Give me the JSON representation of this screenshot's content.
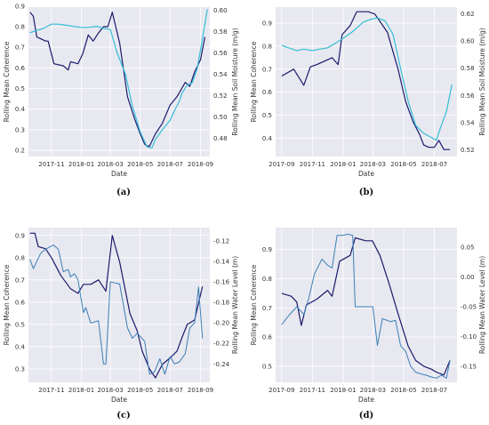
{
  "colors": {
    "coherence": "#1a1a6e",
    "soil": "#33bfd6",
    "water": "#3a7fb5"
  },
  "chart_data": [
    {
      "type": "line",
      "caption": "(a)",
      "xlabel": "Date",
      "ylabel": "Rolling Mean Coherence",
      "ylabel_right": "Rolling Mean Soil Moisture (m/g)",
      "xlim": [
        "2017-09-15",
        "2018-09-20"
      ],
      "ylim": [
        0.17,
        0.895
      ],
      "ylim_right": [
        0.463,
        0.603
      ],
      "x_ticks": [
        "2017-11",
        "2018-01",
        "2018-03",
        "2018-05",
        "2018-07",
        "2018-09"
      ],
      "x_tick_dates": [
        "2017-11-01",
        "2018-01-01",
        "2018-03-01",
        "2018-05-01",
        "2018-07-01",
        "2018-09-01"
      ],
      "y_ticks": [
        "0.2",
        "0.3",
        "0.4",
        "0.5",
        "0.6",
        "0.7",
        "0.8",
        "0.9"
      ],
      "y_tick_values": [
        0.2,
        0.3,
        0.4,
        0.5,
        0.6,
        0.7,
        0.8,
        0.9
      ],
      "y_ticks_right": [
        "0.48",
        "0.50",
        "0.52",
        "0.54",
        "0.56",
        "0.58",
        "0.60"
      ],
      "y_tick_values_right": [
        0.48,
        0.5,
        0.52,
        0.54,
        0.56,
        0.58,
        0.6
      ],
      "series": [
        {
          "axis": "left",
          "color_key": "coherence",
          "width": 1.2,
          "x": [
            "2017-09-18",
            "2017-09-25",
            "2017-10-02",
            "2017-10-20",
            "2017-10-25",
            "2017-11-06",
            "2017-11-25",
            "2017-12-05",
            "2017-12-10",
            "2017-12-25",
            "2018-01-04",
            "2018-01-15",
            "2018-01-25",
            "2018-02-05",
            "2018-02-15",
            "2018-02-24",
            "2018-03-05",
            "2018-03-20",
            "2018-04-05",
            "2018-04-20",
            "2018-05-01",
            "2018-05-10",
            "2018-05-15",
            "2018-05-20",
            "2018-06-01",
            "2018-06-15",
            "2018-07-01",
            "2018-07-15",
            "2018-08-01",
            "2018-08-10",
            "2018-08-20",
            "2018-09-01",
            "2018-09-10"
          ],
          "y": [
            0.87,
            0.85,
            0.75,
            0.73,
            0.73,
            0.62,
            0.61,
            0.59,
            0.63,
            0.62,
            0.67,
            0.76,
            0.73,
            0.77,
            0.8,
            0.8,
            0.87,
            0.72,
            0.46,
            0.35,
            0.28,
            0.23,
            0.22,
            0.22,
            0.28,
            0.33,
            0.42,
            0.46,
            0.53,
            0.51,
            0.58,
            0.64,
            0.75
          ]
        },
        {
          "axis": "right",
          "color_key": "soil",
          "width": 1.2,
          "x": [
            "2017-09-18",
            "2017-10-01",
            "2017-10-15",
            "2017-11-01",
            "2017-11-15",
            "2017-12-01",
            "2017-12-15",
            "2018-01-01",
            "2018-01-15",
            "2018-02-01",
            "2018-02-15",
            "2018-03-01",
            "2018-03-15",
            "2018-04-01",
            "2018-04-15",
            "2018-05-01",
            "2018-05-15",
            "2018-05-25",
            "2018-06-01",
            "2018-06-15",
            "2018-07-01",
            "2018-07-10",
            "2018-07-20",
            "2018-07-25",
            "2018-08-05",
            "2018-08-15",
            "2018-08-25",
            "2018-09-05",
            "2018-09-15"
          ],
          "y": [
            0.579,
            0.581,
            0.583,
            0.587,
            0.587,
            0.586,
            0.585,
            0.584,
            0.584,
            0.585,
            0.583,
            0.582,
            0.56,
            0.54,
            0.51,
            0.486,
            0.472,
            0.471,
            0.479,
            0.488,
            0.497,
            0.506,
            0.515,
            0.522,
            0.53,
            0.532,
            0.545,
            0.573,
            0.601
          ]
        }
      ]
    },
    {
      "type": "line",
      "caption": "(b)",
      "xlabel": "Date",
      "ylabel": "Rolling Mean Coherence",
      "ylabel_right": "Rolling Mean Soil Moisture (m/g)",
      "xlim": [
        "2017-08-20",
        "2018-08-15"
      ],
      "ylim": [
        0.32,
        0.97
      ],
      "ylim_right": [
        0.515,
        0.625
      ],
      "x_ticks": [
        "2017-09",
        "2017-11",
        "2018-01",
        "2018-03",
        "2018-05",
        "2018-07"
      ],
      "x_tick_dates": [
        "2017-09-01",
        "2017-11-01",
        "2018-01-01",
        "2018-03-01",
        "2018-05-01",
        "2018-07-01"
      ],
      "y_ticks": [
        "0.4",
        "0.5",
        "0.6",
        "0.7",
        "0.8",
        "0.9"
      ],
      "y_tick_values": [
        0.4,
        0.5,
        0.6,
        0.7,
        0.8,
        0.9
      ],
      "y_ticks_right": [
        "0.52",
        "0.54",
        "0.56",
        "0.58",
        "0.60",
        "0.62"
      ],
      "y_tick_values_right": [
        0.52,
        0.54,
        0.56,
        0.58,
        0.6,
        0.62
      ],
      "series": [
        {
          "axis": "left",
          "color_key": "coherence",
          "width": 1.2,
          "x": [
            "2017-09-01",
            "2017-09-25",
            "2017-10-15",
            "2017-10-28",
            "2017-11-10",
            "2017-12-10",
            "2017-12-22",
            "2017-12-30",
            "2018-01-15",
            "2018-01-28",
            "2018-02-20",
            "2018-03-05",
            "2018-03-30",
            "2018-04-20",
            "2018-05-05",
            "2018-05-20",
            "2018-06-01",
            "2018-06-10",
            "2018-06-20",
            "2018-07-01",
            "2018-07-10",
            "2018-07-20",
            "2018-08-01"
          ],
          "y": [
            0.67,
            0.7,
            0.63,
            0.71,
            0.72,
            0.75,
            0.72,
            0.85,
            0.89,
            0.95,
            0.95,
            0.94,
            0.86,
            0.7,
            0.56,
            0.47,
            0.42,
            0.37,
            0.36,
            0.36,
            0.39,
            0.35,
            0.35
          ]
        },
        {
          "axis": "right",
          "color_key": "soil",
          "width": 1.2,
          "x": [
            "2017-09-01",
            "2017-09-15",
            "2017-10-01",
            "2017-10-15",
            "2017-11-01",
            "2017-11-15",
            "2017-12-01",
            "2017-12-15",
            "2018-01-01",
            "2018-01-20",
            "2018-02-10",
            "2018-02-25",
            "2018-03-10",
            "2018-03-25",
            "2018-04-10",
            "2018-04-25",
            "2018-05-10",
            "2018-05-25",
            "2018-06-10",
            "2018-06-25",
            "2018-07-05",
            "2018-07-15",
            "2018-07-25",
            "2018-08-05"
          ],
          "y": [
            0.597,
            0.595,
            0.593,
            0.594,
            0.593,
            0.594,
            0.595,
            0.598,
            0.602,
            0.607,
            0.614,
            0.616,
            0.617,
            0.615,
            0.605,
            0.58,
            0.556,
            0.538,
            0.532,
            0.529,
            0.527,
            0.538,
            0.548,
            0.568
          ]
        }
      ]
    },
    {
      "type": "line",
      "caption": "(c)",
      "xlabel": "Date",
      "ylabel": "Rolling Mean Coherence",
      "ylabel_right": "Rolling Mean Water Level (m)",
      "xlim": [
        "2017-09-15",
        "2018-09-20"
      ],
      "ylim": [
        0.24,
        0.935
      ],
      "ylim_right": [
        -0.258,
        -0.107
      ],
      "x_ticks": [
        "2017-11",
        "2018-01",
        "2018-03",
        "2018-05",
        "2018-07",
        "2018-09"
      ],
      "x_tick_dates": [
        "2017-11-01",
        "2018-01-01",
        "2018-03-01",
        "2018-05-01",
        "2018-07-01",
        "2018-09-01"
      ],
      "y_ticks": [
        "0.3",
        "0.4",
        "0.5",
        "0.6",
        "0.7",
        "0.8",
        "0.9"
      ],
      "y_tick_values": [
        0.3,
        0.4,
        0.5,
        0.6,
        0.7,
        0.8,
        0.9
      ],
      "y_ticks_right": [
        "-0.24",
        "-0.22",
        "-0.20",
        "-0.18",
        "-0.16",
        "-0.14",
        "-0.12"
      ],
      "y_tick_values_right": [
        -0.24,
        -0.22,
        -0.2,
        -0.18,
        -0.16,
        -0.14,
        -0.12
      ],
      "series": [
        {
          "axis": "left",
          "color_key": "coherence",
          "width": 1.2,
          "x": [
            "2017-09-18",
            "2017-09-28",
            "2017-10-05",
            "2017-10-20",
            "2017-11-01",
            "2017-11-20",
            "2017-12-10",
            "2017-12-25",
            "2018-01-05",
            "2018-01-20",
            "2018-02-05",
            "2018-02-20",
            "2018-03-05",
            "2018-03-20",
            "2018-04-10",
            "2018-04-25",
            "2018-05-05",
            "2018-05-20",
            "2018-06-01",
            "2018-06-15",
            "2018-07-01",
            "2018-07-15",
            "2018-07-25",
            "2018-08-05",
            "2018-08-20",
            "2018-09-05"
          ],
          "y": [
            0.91,
            0.91,
            0.85,
            0.84,
            0.8,
            0.72,
            0.66,
            0.64,
            0.68,
            0.68,
            0.7,
            0.65,
            0.9,
            0.78,
            0.55,
            0.47,
            0.38,
            0.3,
            0.26,
            0.32,
            0.35,
            0.38,
            0.44,
            0.5,
            0.52,
            0.67
          ]
        },
        {
          "axis": "right",
          "color_key": "water",
          "width": 1.0,
          "x": [
            "2017-09-18",
            "2017-09-25",
            "2017-10-10",
            "2017-10-20",
            "2017-11-05",
            "2017-11-15",
            "2017-11-25",
            "2017-12-05",
            "2017-12-10",
            "2017-12-18",
            "2017-12-25",
            "2018-01-05",
            "2018-01-10",
            "2018-01-20",
            "2018-02-05",
            "2018-02-15",
            "2018-02-20",
            "2018-03-01",
            "2018-03-20",
            "2018-04-05",
            "2018-04-15",
            "2018-04-25",
            "2018-05-10",
            "2018-05-20",
            "2018-05-30",
            "2018-06-10",
            "2018-06-20",
            "2018-07-01",
            "2018-07-10",
            "2018-07-20",
            "2018-08-01",
            "2018-08-10",
            "2018-08-20",
            "2018-08-28",
            "2018-09-05"
          ],
          "y": [
            -0.138,
            -0.147,
            -0.132,
            -0.128,
            -0.124,
            -0.128,
            -0.15,
            -0.148,
            -0.155,
            -0.152,
            -0.158,
            -0.19,
            -0.185,
            -0.2,
            -0.198,
            -0.24,
            -0.24,
            -0.16,
            -0.162,
            -0.205,
            -0.215,
            -0.21,
            -0.218,
            -0.25,
            -0.248,
            -0.235,
            -0.25,
            -0.233,
            -0.24,
            -0.238,
            -0.23,
            -0.205,
            -0.2,
            -0.165,
            -0.215
          ]
        }
      ]
    },
    {
      "type": "line",
      "caption": "(d)",
      "xlabel": "Date",
      "ylabel": "Rolling Mean Coherence",
      "ylabel_right": "Rolling Mean Water Level (m)",
      "xlim": [
        "2017-08-20",
        "2018-08-15"
      ],
      "ylim": [
        0.445,
        0.975
      ],
      "ylim_right": [
        -0.177,
        0.083
      ],
      "x_ticks": [
        "2017-09",
        "2017-11",
        "2018-01",
        "2018-03",
        "2018-05",
        "2018-07"
      ],
      "x_tick_dates": [
        "2017-09-01",
        "2017-11-01",
        "2018-01-01",
        "2018-03-01",
        "2018-05-01",
        "2018-07-01"
      ],
      "y_ticks": [
        "0.5",
        "0.6",
        "0.7",
        "0.8",
        "0.9"
      ],
      "y_tick_values": [
        0.5,
        0.6,
        0.7,
        0.8,
        0.9
      ],
      "y_ticks_right": [
        "-0.15",
        "-0.10",
        "-0.05",
        "0.00",
        "0.05"
      ],
      "y_tick_values_right": [
        -0.15,
        -0.1,
        -0.05,
        0.0,
        0.05
      ],
      "series": [
        {
          "axis": "left",
          "color_key": "coherence",
          "width": 1.2,
          "x": [
            "2017-09-01",
            "2017-09-20",
            "2017-10-01",
            "2017-10-10",
            "2017-10-20",
            "2017-11-10",
            "2017-12-01",
            "2017-12-10",
            "2017-12-25",
            "2018-01-15",
            "2018-01-25",
            "2018-02-15",
            "2018-02-28",
            "2018-03-15",
            "2018-04-01",
            "2018-04-20",
            "2018-05-10",
            "2018-05-25",
            "2018-06-10",
            "2018-06-25",
            "2018-07-05",
            "2018-07-20",
            "2018-08-01"
          ],
          "y": [
            0.75,
            0.74,
            0.72,
            0.64,
            0.71,
            0.73,
            0.76,
            0.74,
            0.86,
            0.88,
            0.94,
            0.93,
            0.93,
            0.88,
            0.79,
            0.68,
            0.57,
            0.52,
            0.5,
            0.49,
            0.48,
            0.47,
            0.52
          ]
        },
        {
          "axis": "right",
          "color_key": "water",
          "width": 1.0,
          "x": [
            "2017-09-01",
            "2017-09-15",
            "2017-10-01",
            "2017-10-15",
            "2017-10-25",
            "2017-11-05",
            "2017-11-20",
            "2017-12-01",
            "2017-12-10",
            "2017-12-20",
            "2018-01-01",
            "2018-01-10",
            "2018-01-20",
            "2018-01-25",
            "2018-02-05",
            "2018-02-15",
            "2018-03-01",
            "2018-03-10",
            "2018-03-20",
            "2018-04-05",
            "2018-04-15",
            "2018-04-25",
            "2018-05-05",
            "2018-05-15",
            "2018-05-25",
            "2018-06-05",
            "2018-06-15",
            "2018-06-25",
            "2018-07-05",
            "2018-07-15",
            "2018-07-25",
            "2018-08-01"
          ],
          "y": [
            -0.08,
            -0.065,
            -0.05,
            -0.063,
            -0.035,
            0.005,
            0.03,
            0.02,
            0.015,
            0.07,
            0.07,
            0.072,
            0.07,
            -0.05,
            -0.05,
            -0.05,
            -0.05,
            -0.115,
            -0.07,
            -0.075,
            -0.073,
            -0.115,
            -0.125,
            -0.15,
            -0.16,
            -0.163,
            -0.165,
            -0.168,
            -0.17,
            -0.165,
            -0.17,
            -0.14
          ]
        }
      ]
    }
  ]
}
